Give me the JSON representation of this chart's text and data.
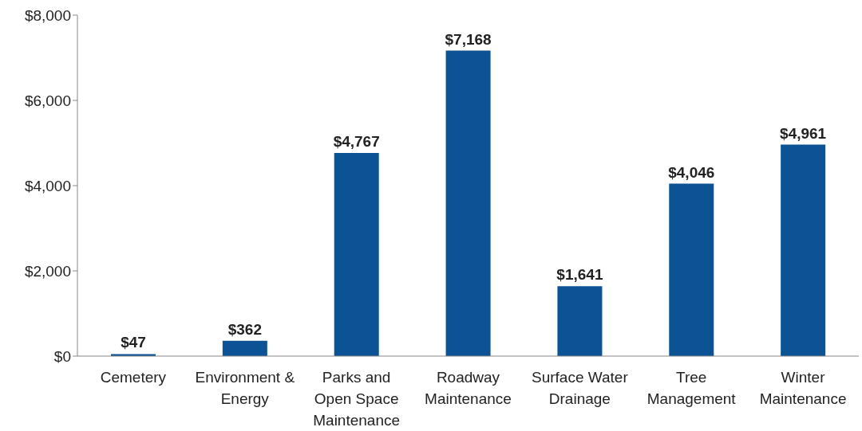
{
  "chart_data": {
    "type": "bar",
    "categories": [
      "Cemetery",
      "Environment & Energy",
      "Parks and Open Space Maintenance",
      "Roadway Maintenance",
      "Surface Water Drainage",
      "Tree Management",
      "Winter Maintenance"
    ],
    "values": [
      47,
      362,
      4767,
      7168,
      1641,
      4046,
      4961
    ],
    "value_labels": [
      "$47",
      "$362",
      "$4,767",
      "$7,168",
      "$1,641",
      "$4,046",
      "$4,961"
    ],
    "color": "#0b5395",
    "ylim": [
      0,
      8000
    ],
    "yticks": [
      {
        "value": 0,
        "label": "$0"
      },
      {
        "value": 2000,
        "label": "$2,000"
      },
      {
        "value": 4000,
        "label": "$4,000"
      },
      {
        "value": 6000,
        "label": "$6,000"
      },
      {
        "value": 8000,
        "label": "$8,000"
      }
    ],
    "grid": false,
    "legend": false
  }
}
